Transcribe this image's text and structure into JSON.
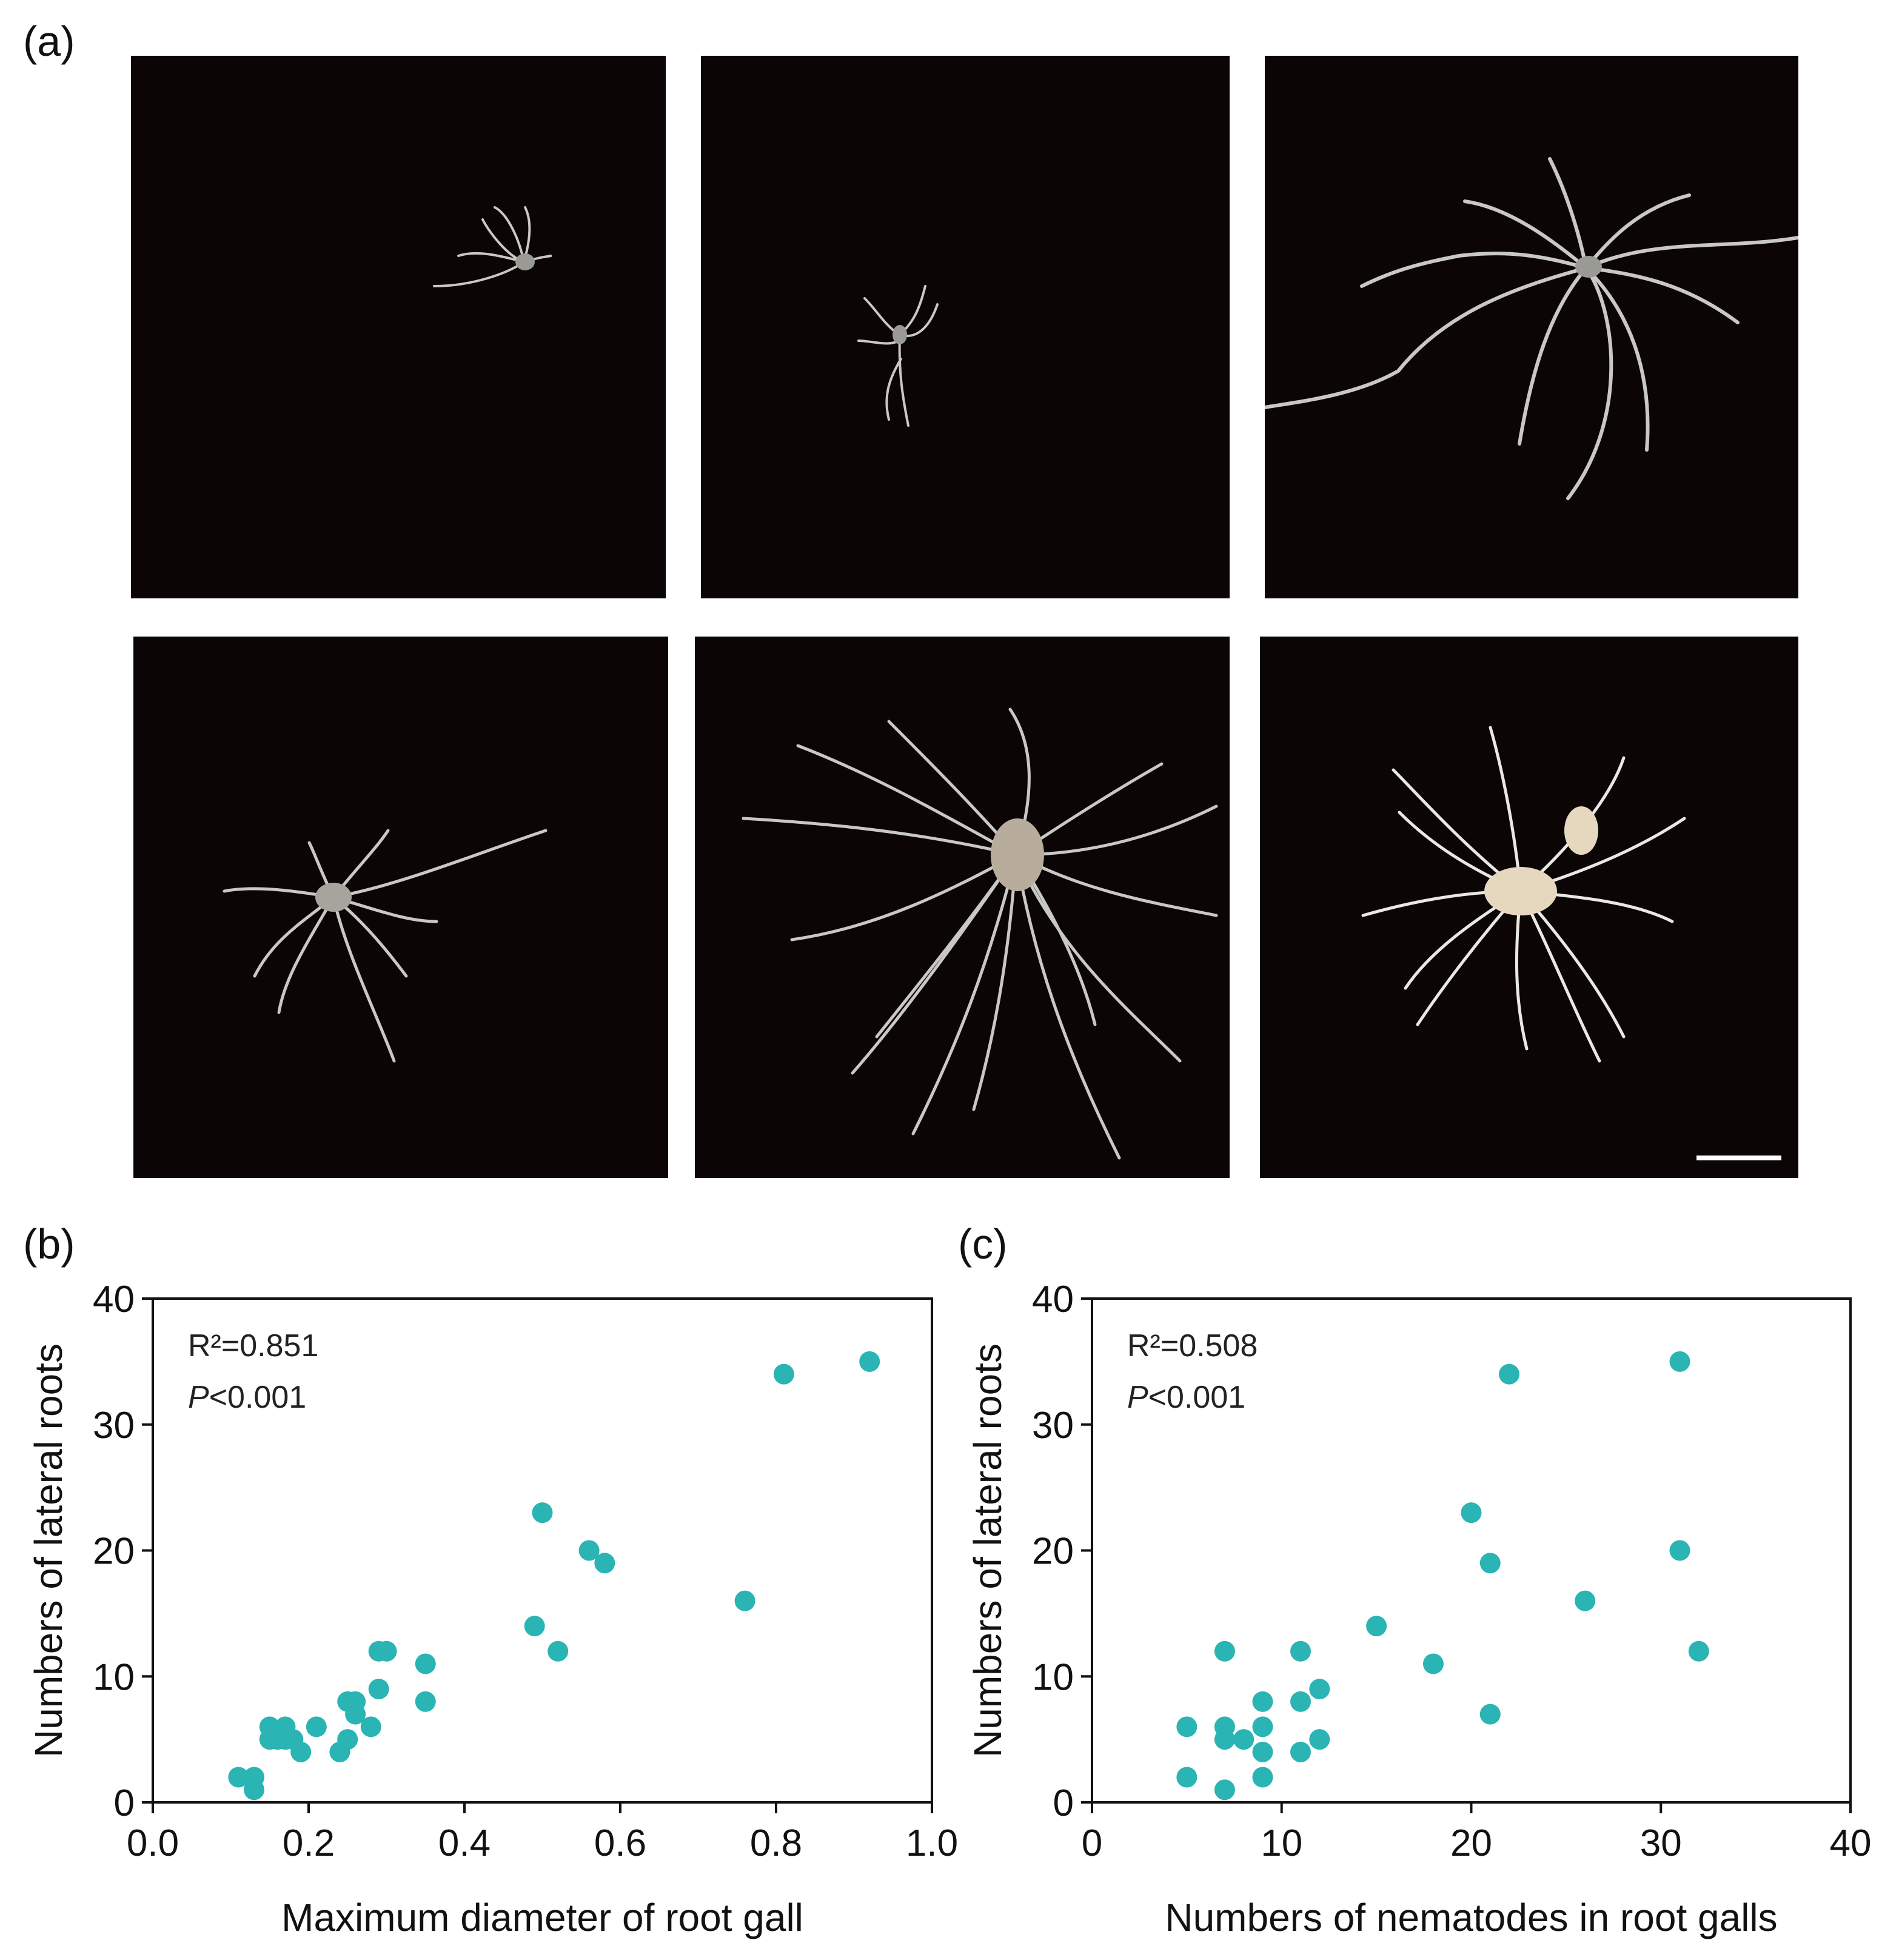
{
  "figure": {
    "panel_a_label": "(a)",
    "panel_b_label": "(b)",
    "panel_c_label": "(c)",
    "photo_panels": [
      {
        "name": "root-photo-1",
        "content": "small root system with gall"
      },
      {
        "name": "root-photo-2",
        "content": "small vertical root system"
      },
      {
        "name": "root-photo-3",
        "content": "root system with long laterals"
      },
      {
        "name": "root-photo-4",
        "content": "root system with gall and laterals"
      },
      {
        "name": "root-photo-5",
        "content": "dense root system with large gall"
      },
      {
        "name": "root-photo-6",
        "content": "dense white root system with galls"
      }
    ],
    "scale_bar_present": true
  },
  "colors": {
    "point": "#2ab4b4",
    "photo_bg": "#0b0506",
    "root": "#c9c9c4",
    "axis": "#111111"
  },
  "chart_data": [
    {
      "id": "b",
      "type": "scatter",
      "xlabel": "Maximum diameter of root gall",
      "ylabel": "Numbers of lateral roots",
      "annotation_r2": "R²=0.851",
      "annotation_p_italic": "P",
      "annotation_p_rest": "<0.001",
      "xlim": [
        0,
        1.0
      ],
      "ylim": [
        0,
        40
      ],
      "xticks": [
        "0.0",
        "0.2",
        "0.4",
        "0.6",
        "0.8",
        "1.0"
      ],
      "yticks": [
        "0",
        "10",
        "20",
        "30",
        "40"
      ],
      "xtick_values": [
        0,
        0.2,
        0.4,
        0.6,
        0.8,
        1.0
      ],
      "ytick_values": [
        0,
        10,
        20,
        30,
        40
      ],
      "grid": false,
      "points": [
        [
          0.11,
          2
        ],
        [
          0.13,
          2
        ],
        [
          0.13,
          1
        ],
        [
          0.15,
          6
        ],
        [
          0.15,
          5
        ],
        [
          0.16,
          5
        ],
        [
          0.17,
          6
        ],
        [
          0.17,
          5
        ],
        [
          0.18,
          5
        ],
        [
          0.19,
          4
        ],
        [
          0.21,
          6
        ],
        [
          0.24,
          4
        ],
        [
          0.25,
          5
        ],
        [
          0.25,
          8
        ],
        [
          0.26,
          8
        ],
        [
          0.26,
          7
        ],
        [
          0.28,
          6
        ],
        [
          0.29,
          12
        ],
        [
          0.29,
          9
        ],
        [
          0.3,
          12
        ],
        [
          0.35,
          11
        ],
        [
          0.35,
          8
        ],
        [
          0.49,
          14
        ],
        [
          0.5,
          23
        ],
        [
          0.52,
          12
        ],
        [
          0.56,
          20
        ],
        [
          0.58,
          19
        ],
        [
          0.76,
          16
        ],
        [
          0.81,
          34
        ],
        [
          0.92,
          35
        ]
      ]
    },
    {
      "id": "c",
      "type": "scatter",
      "xlabel": "Numbers of nematodes in root galls",
      "ylabel": "Numbers of lateral roots",
      "annotation_r2": "R²=0.508",
      "annotation_p_italic": "P",
      "annotation_p_rest": "<0.001",
      "xlim": [
        0,
        40
      ],
      "ylim": [
        0,
        40
      ],
      "xticks": [
        "0",
        "10",
        "20",
        "30",
        "40"
      ],
      "yticks": [
        "0",
        "10",
        "20",
        "30",
        "40"
      ],
      "xtick_values": [
        0,
        10,
        20,
        30,
        40
      ],
      "ytick_values": [
        0,
        10,
        20,
        30,
        40
      ],
      "grid": false,
      "points": [
        [
          5,
          6
        ],
        [
          5,
          2
        ],
        [
          7,
          12
        ],
        [
          7,
          6
        ],
        [
          7,
          5
        ],
        [
          7,
          1
        ],
        [
          8,
          5
        ],
        [
          9,
          8
        ],
        [
          9,
          6
        ],
        [
          9,
          4
        ],
        [
          9,
          2
        ],
        [
          11,
          12
        ],
        [
          11,
          8
        ],
        [
          11,
          4
        ],
        [
          12,
          9
        ],
        [
          12,
          5
        ],
        [
          15,
          14
        ],
        [
          18,
          11
        ],
        [
          20,
          23
        ],
        [
          21,
          19
        ],
        [
          21,
          7
        ],
        [
          22,
          34
        ],
        [
          26,
          16
        ],
        [
          31,
          35
        ],
        [
          31,
          20
        ],
        [
          32,
          12
        ]
      ]
    }
  ]
}
